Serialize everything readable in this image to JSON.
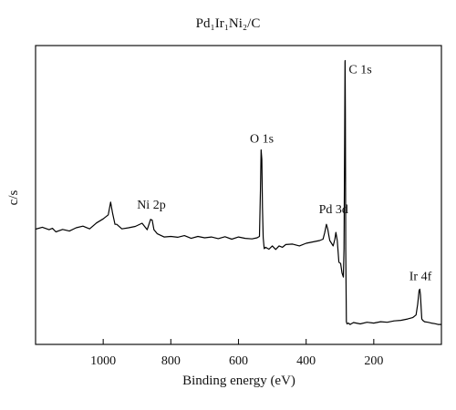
{
  "chart_data": {
    "type": "line",
    "title": "Pd₁Ir₁Ni₂/C",
    "xlabel": "Binding energy (eV)",
    "ylabel": "c/s",
    "x_reversed": true,
    "xlim": [
      1200,
      0
    ],
    "ylim": [
      0,
      1
    ],
    "grid": false,
    "x_ticks": [
      1000,
      800,
      600,
      400,
      200
    ],
    "x_tick_labels": [
      "1000",
      "800",
      "600",
      "400",
      "200"
    ],
    "annotations": [
      {
        "text": "C 1s",
        "x": 284.8
      },
      {
        "text": "O 1s",
        "x": 531
      },
      {
        "text": "Pd 3d",
        "x": 335
      },
      {
        "text": "Ni 2p",
        "x": 855
      },
      {
        "text": "Ir 4f",
        "x": 62
      }
    ],
    "series": [
      {
        "x": [
          1200,
          1180,
          1160,
          1150,
          1140,
          1120,
          1100,
          1080,
          1060,
          1040,
          1020,
          1000,
          985,
          978,
          972,
          965,
          960,
          945,
          925,
          905,
          885,
          870,
          860,
          855,
          850,
          840,
          820,
          800,
          780,
          760,
          740,
          720,
          700,
          680,
          660,
          640,
          620,
          600,
          580,
          560,
          545,
          538,
          535,
          533,
          531,
          529,
          527,
          524,
          520,
          510,
          500,
          490,
          480,
          470,
          460,
          440,
          420,
          400,
          380,
          360,
          350,
          345,
          340,
          336,
          333,
          330,
          325,
          320,
          315,
          312,
          308,
          303,
          298,
          294,
          290,
          288,
          286,
          285,
          284.8,
          284,
          283,
          281,
          279,
          275,
          270,
          260,
          240,
          220,
          200,
          180,
          160,
          140,
          120,
          100,
          85,
          75,
          70,
          66,
          64,
          62,
          60,
          58,
          55,
          50,
          40,
          30,
          20,
          10,
          0
        ],
        "y": [
          0.372,
          0.379,
          0.37,
          0.375,
          0.362,
          0.371,
          0.365,
          0.377,
          0.383,
          0.373,
          0.395,
          0.41,
          0.425,
          0.472,
          0.43,
          0.39,
          0.39,
          0.373,
          0.377,
          0.382,
          0.394,
          0.37,
          0.408,
          0.405,
          0.37,
          0.355,
          0.343,
          0.345,
          0.342,
          0.348,
          0.338,
          0.345,
          0.34,
          0.343,
          0.337,
          0.344,
          0.335,
          0.343,
          0.338,
          0.336,
          0.34,
          0.345,
          0.52,
          0.665,
          0.63,
          0.45,
          0.34,
          0.3,
          0.305,
          0.298,
          0.31,
          0.297,
          0.31,
          0.305,
          0.315,
          0.317,
          0.31,
          0.32,
          0.325,
          0.33,
          0.335,
          0.36,
          0.39,
          0.372,
          0.35,
          0.33,
          0.32,
          0.31,
          0.335,
          0.36,
          0.33,
          0.25,
          0.245,
          0.21,
          0.195,
          0.3,
          0.7,
          0.99,
          0.995,
          0.8,
          0.3,
          0.03,
          0.022,
          0.025,
          0.02,
          0.027,
          0.022,
          0.028,
          0.025,
          0.03,
          0.028,
          0.033,
          0.035,
          0.04,
          0.045,
          0.055,
          0.095,
          0.145,
          0.15,
          0.13,
          0.08,
          0.04,
          0.035,
          0.03,
          0.028,
          0.025,
          0.023,
          0.02,
          0.02
        ]
      }
    ]
  }
}
